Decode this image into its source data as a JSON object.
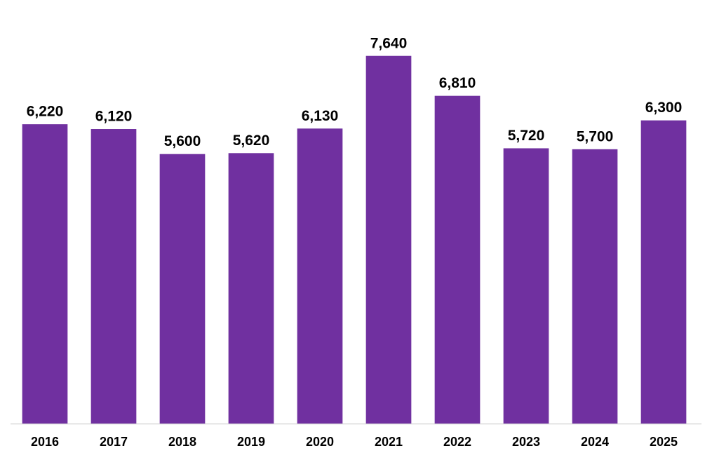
{
  "chart_data": {
    "type": "bar",
    "categories": [
      "2016",
      "2017",
      "2018",
      "2019",
      "2020",
      "2021",
      "2022",
      "2023",
      "2024",
      "2025"
    ],
    "values": [
      6220,
      6120,
      5600,
      5620,
      6130,
      7640,
      6810,
      5720,
      5700,
      6300
    ],
    "value_labels": [
      "6,220",
      "6,120",
      "5,600",
      "5,620",
      "6,130",
      "7,640",
      "6,810",
      "5,720",
      "5,700",
      "6,300"
    ],
    "color": "#7030a0",
    "ylim": [
      0,
      8000
    ]
  }
}
